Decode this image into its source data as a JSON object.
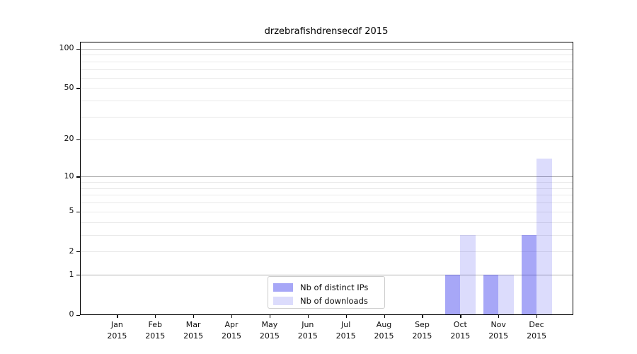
{
  "title": "drzebrafishdrensecdf 2015",
  "colors": {
    "background": "#ffffff",
    "spine": "#000000",
    "grid_major": "#b0b0b0",
    "grid_minor": "#e9e9e9",
    "distinct_ips_bar": "rgba(35,35,235,0.40)",
    "downloads_bar": "rgba(35,35,235,0.16)",
    "legend_border": "#cccccc",
    "text": "#0d0d0d"
  },
  "chart_data": {
    "type": "bar",
    "title": "drzebrafishdrensecdf 2015",
    "categories": [
      "Jan",
      "Feb",
      "Mar",
      "Apr",
      "May",
      "Jun",
      "Jul",
      "Aug",
      "Sep",
      "Oct",
      "Nov",
      "Dec"
    ],
    "year_label": "2015",
    "series": [
      {
        "name": "Nb of distinct IPs",
        "color": "rgba(35,35,235,0.40)",
        "values": [
          0,
          0,
          0,
          0,
          0,
          0,
          0,
          0,
          0,
          1,
          1,
          3
        ]
      },
      {
        "name": "Nb of downloads",
        "color": "rgba(35,35,235,0.16)",
        "values": [
          0,
          0,
          0,
          0,
          0,
          0,
          0,
          0,
          0,
          3,
          1,
          14
        ]
      }
    ],
    "yscale": "log10(1+y)",
    "ylim": [
      0,
      113
    ],
    "ytick_values": [
      0,
      1,
      2,
      5,
      10,
      20,
      50,
      100
    ],
    "ytick_labels": [
      "0",
      "1",
      "2",
      "5",
      "10",
      "20",
      "50",
      "100"
    ],
    "grid": true,
    "grid_major_values": [
      1,
      10,
      100
    ],
    "grid_minor_values": [
      2,
      3,
      4,
      5,
      6,
      7,
      8,
      9,
      20,
      30,
      40,
      50,
      60,
      70,
      80,
      90
    ],
    "legend_position": "lower center",
    "xlabel": "",
    "ylabel": ""
  },
  "legend": {
    "entries": [
      {
        "label": "Nb of distinct IPs"
      },
      {
        "label": "Nb of downloads"
      }
    ]
  }
}
